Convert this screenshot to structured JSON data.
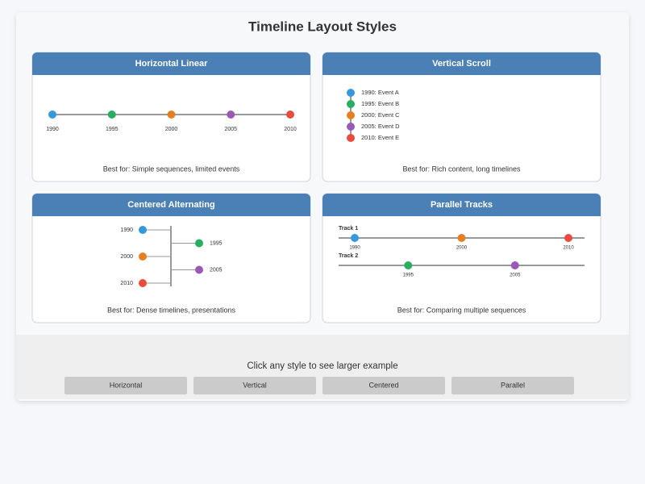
{
  "title": "Timeline Layout Styles",
  "panels": [
    {
      "title": "Horizontal Linear",
      "labels": [
        "1990",
        "1995",
        "2000",
        "2005",
        "2010"
      ],
      "caption": "Best for: Simple sequences, limited events"
    },
    {
      "title": "Vertical Scroll",
      "labels": [
        "1990: Event A",
        "1995: Event B",
        "2000: Event C",
        "2005: Event D",
        "2010: Event E"
      ],
      "caption": "Best for: Rich content, long timelines"
    },
    {
      "title": "Centered Alternating",
      "labels": [
        "1990",
        "1995",
        "2000",
        "2005",
        "2010"
      ],
      "caption": "Best for: Dense timelines, presentations"
    },
    {
      "title": "Parallel Tracks",
      "tracks": [
        {
          "name": "Track 1",
          "labels": [
            "1990",
            "2000",
            "2010"
          ]
        },
        {
          "name": "Track 2",
          "labels": [
            "1995",
            "2005"
          ]
        }
      ],
      "caption": "Best for: Comparing multiple sequences"
    }
  ],
  "footer": {
    "prompt": "Click any style to see larger example",
    "buttons": [
      "Horizontal",
      "Vertical",
      "Centered",
      "Parallel"
    ]
  }
}
